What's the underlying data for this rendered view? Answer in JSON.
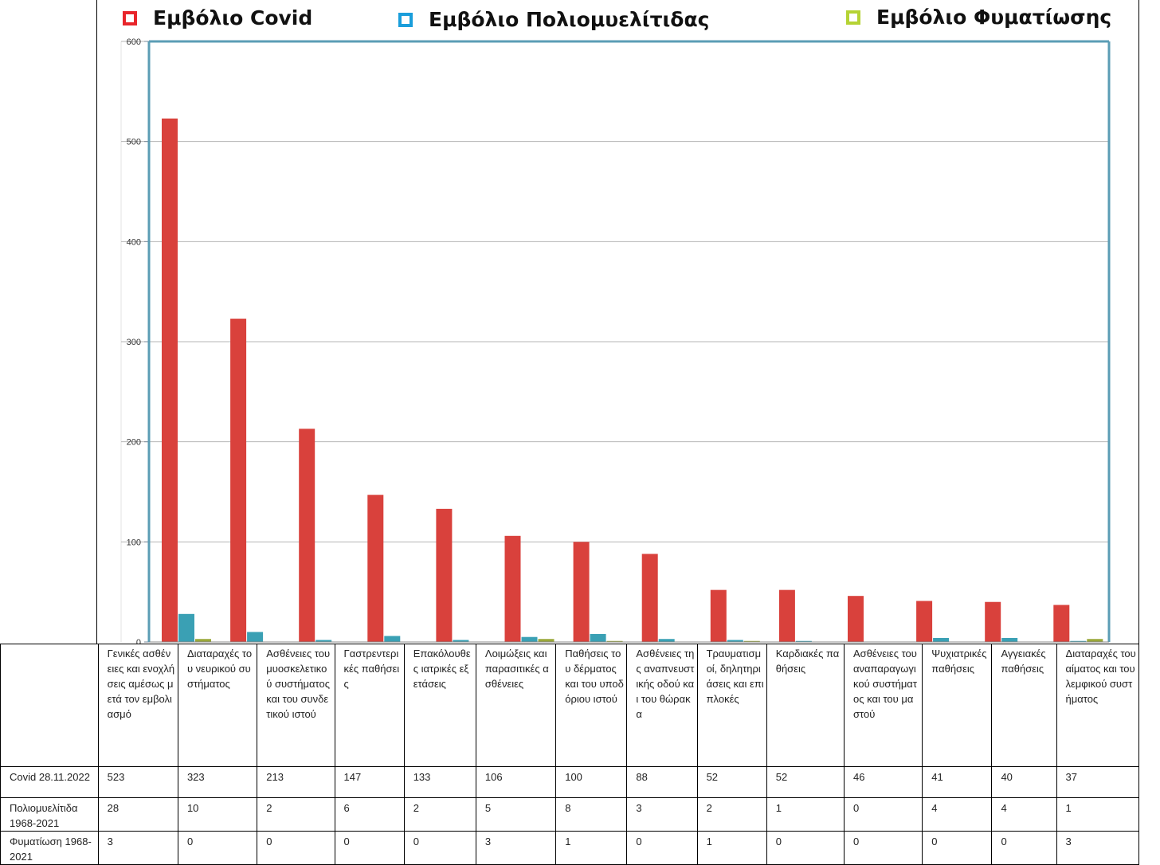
{
  "legend": [
    {
      "label": "Εμβόλιο Covid",
      "color": "#e8252b"
    },
    {
      "label": "Εμβόλιο Πολιομυελίτιδας",
      "color": "#1a9edb"
    },
    {
      "label": "Εμβόλιο Φυματίωσης",
      "color": "#b5d334"
    }
  ],
  "chart_data": {
    "type": "bar",
    "categories": [
      "Γενικές ασθένειες και ενοχλήσεις αμέσως μετά τον εμβολιασμό",
      "Διαταραχές του νευρικού συστήματος",
      "Ασθένειες του μυοσκελετικού συστήματος και του συνδετικού ιστού",
      "Γαστρεντερικές παθήσεις",
      "Επακόλουθες ιατρικές εξετάσεις",
      "Λοιμώξεις και παρασιτικές ασθένειες",
      "Παθήσεις του δέρματος και του υποδόριου ιστού",
      "Ασθένειες της αναπνευστικής οδού και του θώρακα",
      "Τραυματισμοί, δηλητηριάσεις και επιπλοκές",
      "Καρδιακές παθήσεις",
      "Ασθένειες του αναπαραγωγικού συστήματος και του μαστού",
      "Ψυχιατρικές παθήσεις",
      "Αγγειακές παθήσεις",
      "Διαταραχές του αίματος και του λεμφικού συστήματος"
    ],
    "series": [
      {
        "name": "Εμβόλιο Covid",
        "color": "#d9413c",
        "values": [
          523,
          323,
          213,
          147,
          133,
          106,
          100,
          88,
          52,
          52,
          46,
          41,
          40,
          37
        ]
      },
      {
        "name": "Εμβόλιο Πολιομυελίτιδας",
        "color": "#3aa0b4",
        "values": [
          28,
          10,
          2,
          6,
          2,
          5,
          8,
          3,
          2,
          1,
          0,
          4,
          4,
          1
        ]
      },
      {
        "name": "Εμβόλιο Φυματίωσης",
        "color": "#9aa83a",
        "values": [
          3,
          0,
          0,
          0,
          0,
          3,
          1,
          0,
          1,
          0,
          0,
          0,
          0,
          3
        ]
      }
    ],
    "yticks": [
      "0",
      "100",
      "200",
      "300",
      "400",
      "500",
      "600"
    ],
    "ylim": [
      0,
      600
    ],
    "grid": true
  },
  "table": {
    "headers": [
      "Γενικές ασθένειες και ενοχλήσεις αμέσως μετά τον εμβολιασμό",
      "Διαταραχές του νευρικού συστήματος",
      "Ασθένειες του μυοσκελετικού συστήματος και του συνδετικού ιστού",
      "Γαστρεντερικές παθήσεις",
      "Επακόλουθες ιατρικές εξετάσεις",
      "Λοιμώξεις και παρασιτικές ασθένειες",
      "Παθήσεις του δέρματος και του υποδόριου ιστού",
      "Ασθένειες της αναπνευστικής οδού και του θώρακα",
      "Τραυματισμοί, δηλητηριάσεις και επιπλοκές",
      "Καρδιακές παθήσεις",
      "Ασθένειες του αναπαραγωγικού συστήματος και του μαστού",
      "Ψυχιατρικές παθήσεις",
      "Αγγειακές παθήσεις",
      "Διαταραχές του αίματος και του λεμφικού συστήματος"
    ],
    "rows": [
      {
        "label": "Covid 28.11.2022",
        "values": [
          "523",
          "323",
          "213",
          "147",
          "133",
          "106",
          "100",
          "88",
          "52",
          "52",
          "46",
          "41",
          "40",
          "37"
        ]
      },
      {
        "label": "Πολιομυελίτιδα 1968-2021",
        "values": [
          "28",
          "10",
          "2",
          "6",
          "2",
          "5",
          "8",
          "3",
          "2",
          "1",
          "0",
          "4",
          "4",
          "1"
        ]
      },
      {
        "label": "Φυματίωση 1968-2021",
        "values": [
          "3",
          "0",
          "0",
          "0",
          "0",
          "3",
          "1",
          "0",
          "1",
          "0",
          "0",
          "0",
          "0",
          "3"
        ]
      }
    ]
  }
}
